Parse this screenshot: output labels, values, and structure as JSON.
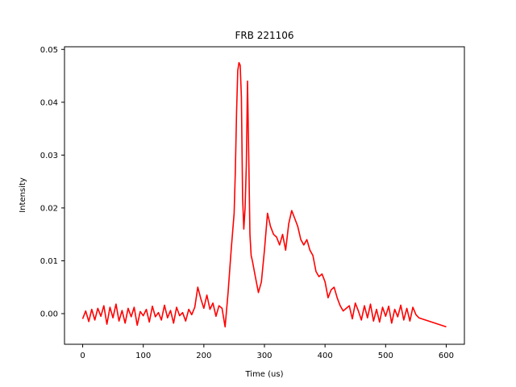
{
  "chart_data": {
    "type": "line",
    "title": "FRB 221106",
    "xlabel": "Time (us)",
    "ylabel": "Intensity",
    "xlim": [
      -30,
      630
    ],
    "ylim": [
      -0.0058,
      0.0505
    ],
    "xticks": [
      0,
      100,
      200,
      300,
      400,
      500,
      600
    ],
    "yticks": [
      0.0,
      0.01,
      0.02,
      0.03,
      0.04,
      0.05
    ],
    "ytick_labels": [
      "0.00",
      "0.01",
      "0.02",
      "0.03",
      "0.04",
      "0.05"
    ],
    "grid": false,
    "legend": "none",
    "series": [
      {
        "color": "#ff0000",
        "x": [
          0,
          5,
          10,
          15,
          20,
          25,
          30,
          35,
          40,
          45,
          50,
          55,
          60,
          65,
          70,
          75,
          80,
          85,
          90,
          95,
          100,
          105,
          110,
          115,
          120,
          125,
          130,
          135,
          140,
          145,
          150,
          155,
          160,
          165,
          170,
          175,
          180,
          185,
          190,
          195,
          200,
          205,
          210,
          215,
          220,
          225,
          230,
          235,
          240,
          245,
          250,
          252,
          254,
          256,
          258,
          260,
          262,
          264,
          266,
          268,
          270,
          272,
          274,
          276,
          278,
          280,
          285,
          290,
          295,
          300,
          305,
          310,
          315,
          320,
          325,
          330,
          335,
          340,
          345,
          350,
          355,
          360,
          365,
          370,
          375,
          380,
          385,
          390,
          395,
          400,
          405,
          410,
          415,
          420,
          425,
          430,
          435,
          440,
          445,
          450,
          455,
          460,
          465,
          470,
          475,
          480,
          485,
          490,
          495,
          500,
          505,
          510,
          515,
          520,
          525,
          530,
          535,
          540,
          545,
          550,
          555,
          600
        ],
        "y": [
          -0.001,
          0.0005,
          -0.0015,
          0.0008,
          -0.0012,
          0.001,
          -0.0005,
          0.0015,
          -0.002,
          0.0012,
          -0.0008,
          0.0018,
          -0.0014,
          0.0006,
          -0.0018,
          0.001,
          -0.0006,
          0.0012,
          -0.0022,
          0.0004,
          -0.0004,
          0.0008,
          -0.0016,
          0.0014,
          -0.0006,
          0.0002,
          -0.0012,
          0.0016,
          -0.0008,
          0.0006,
          -0.0018,
          0.0012,
          -0.0004,
          0.0002,
          -0.0014,
          0.0008,
          -0.0002,
          0.0012,
          0.005,
          0.0028,
          0.001,
          0.0035,
          0.0008,
          0.002,
          -0.0005,
          0.0015,
          0.001,
          -0.0025,
          0.004,
          0.012,
          0.019,
          0.027,
          0.038,
          0.046,
          0.0475,
          0.047,
          0.041,
          0.022,
          0.016,
          0.02,
          0.028,
          0.044,
          0.03,
          0.015,
          0.011,
          0.01,
          0.007,
          0.004,
          0.006,
          0.012,
          0.019,
          0.0165,
          0.015,
          0.0145,
          0.013,
          0.015,
          0.012,
          0.017,
          0.0195,
          0.018,
          0.0165,
          0.014,
          0.013,
          0.014,
          0.012,
          0.011,
          0.008,
          0.007,
          0.0075,
          0.006,
          0.003,
          0.0045,
          0.005,
          0.003,
          0.0015,
          0.0005,
          0.001,
          0.0015,
          -0.001,
          0.002,
          0.0005,
          -0.0012,
          0.0015,
          -0.0008,
          0.0018,
          -0.0014,
          0.0008,
          -0.0016,
          0.0012,
          -0.0005,
          0.0014,
          -0.0018,
          0.0008,
          -0.0006,
          0.0016,
          -0.0012,
          0.001,
          -0.0014,
          0.0012,
          -0.0002,
          -0.0008,
          -0.0025
        ]
      }
    ]
  }
}
